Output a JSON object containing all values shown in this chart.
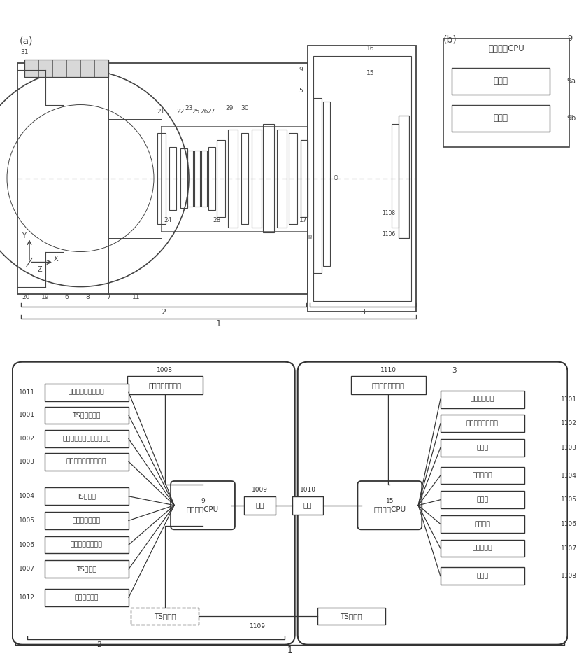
{
  "bg_color": "#ffffff",
  "line_color": "#444444",
  "fig_width": 8.29,
  "fig_height": 9.34,
  "panel_a_label": "(a)",
  "panel_b_label": "(b)",
  "cpu_b_title": "レンズ側CPU",
  "cpu_b_label": "9",
  "cpu_b_sub1": "取得部",
  "cpu_b_sub1_label": "9a",
  "cpu_b_sub2": "制御部",
  "cpu_b_sub2_label": "9b",
  "lens_cpu_label": "9",
  "lens_cpu_text": "レンズ側CPU",
  "cam_cpu_label": "15",
  "cam_cpu_text": "カメラ側CPU",
  "left_nodes": [
    {
      "text": "絞り操作回転検出部",
      "label": "1011"
    },
    {
      "text": "TS操作検出部",
      "label": "1001"
    },
    {
      "text": "フォーカス操作回転検出部",
      "label": "1002"
    },
    {
      "text": "ズーム操作回転検出部",
      "label": "1003"
    },
    {
      "text": "IS駆動部",
      "label": "1004"
    },
    {
      "text": "電磁絞り駆動部",
      "label": "1005"
    },
    {
      "text": "フォーカス駆動部",
      "label": "1006"
    },
    {
      "text": "TS駆動部",
      "label": "1007"
    },
    {
      "text": "被写体記憶部",
      "label": "1012"
    }
  ],
  "right_nodes": [
    {
      "text": "電源スイッチ",
      "label": "1101"
    },
    {
      "text": "レリーズスイッチ",
      "label": "1102"
    },
    {
      "text": "測光部",
      "label": "1103"
    },
    {
      "text": "焦点検出部",
      "label": "1104"
    },
    {
      "text": "露光部",
      "label": "1105"
    },
    {
      "text": "撮像素子",
      "label": "1106"
    },
    {
      "text": "画像記録部",
      "label": "1107"
    },
    {
      "text": "表示部",
      "label": "1108"
    }
  ],
  "top_left_node_text": "レンズ姿勢検出部",
  "top_left_node_label": "1008",
  "top_right_node_text": "カメラ姿勢検出部",
  "top_right_node_label": "1110",
  "cam_label_3": "3",
  "junction_left": "接点",
  "junction_right": "接点",
  "junction_left_label": "1009",
  "junction_right_label": "1010",
  "ts_left": "TS指示部",
  "ts_right": "TS指示部",
  "ts_label": "1109",
  "outer_label_2": "2",
  "outer_label_1": "1"
}
